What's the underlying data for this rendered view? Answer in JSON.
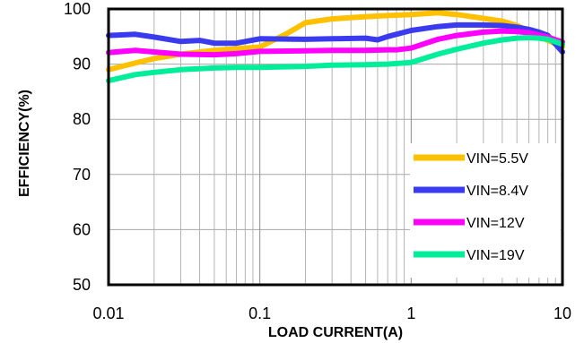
{
  "chart_data": {
    "type": "line",
    "xlabel": "LOAD CURRENT(A)",
    "ylabel": "EFFICIENCY(%)",
    "xscale": "log",
    "xlim": [
      0.01,
      10
    ],
    "ylim": [
      50,
      100
    ],
    "xticks": [
      0.01,
      0.1,
      1,
      10
    ],
    "xtick_labels": [
      "0.01",
      "0.1",
      "1",
      "10"
    ],
    "yticks": [
      50,
      60,
      70,
      80,
      90,
      100
    ],
    "ytick_labels": [
      "50",
      "60",
      "70",
      "80",
      "90",
      "100"
    ],
    "grid": true,
    "legend_position": "bottom-right",
    "series": [
      {
        "name": "VIN=5.5V",
        "color": "#ffc000",
        "x": [
          0.01,
          0.015,
          0.02,
          0.03,
          0.05,
          0.07,
          0.1,
          0.15,
          0.2,
          0.3,
          0.5,
          0.7,
          1,
          1.5,
          2,
          3,
          4,
          5,
          6,
          7,
          8,
          10
        ],
        "y": [
          89.0,
          90.2,
          91.0,
          91.8,
          92.5,
          92.8,
          93.1,
          95.5,
          97.5,
          98.2,
          98.6,
          98.8,
          99.0,
          99.3,
          99.0,
          98.3,
          97.8,
          97.0,
          96.0,
          95.0,
          94.3,
          93.2
        ]
      },
      {
        "name": "VIN=8.4V",
        "color": "#3a3aef",
        "x": [
          0.01,
          0.015,
          0.02,
          0.03,
          0.04,
          0.05,
          0.07,
          0.1,
          0.2,
          0.3,
          0.5,
          0.6,
          0.7,
          1,
          1.5,
          2,
          3,
          4,
          5,
          6,
          7,
          8,
          10
        ],
        "y": [
          95.2,
          95.4,
          94.9,
          94.1,
          94.3,
          93.8,
          93.8,
          94.6,
          94.5,
          94.6,
          94.7,
          94.4,
          95.0,
          96.1,
          96.8,
          97.1,
          97.1,
          97.0,
          96.7,
          96.3,
          95.8,
          95.2,
          92.2
        ]
      },
      {
        "name": "VIN=12V",
        "color": "#ff00ff",
        "x": [
          0.01,
          0.015,
          0.02,
          0.03,
          0.05,
          0.07,
          0.1,
          0.2,
          0.3,
          0.5,
          0.7,
          0.8,
          1,
          1.5,
          2,
          3,
          4,
          5,
          6,
          7,
          8,
          10
        ],
        "y": [
          92.1,
          92.5,
          92.2,
          91.8,
          91.7,
          91.9,
          92.3,
          92.4,
          92.5,
          92.5,
          92.6,
          92.6,
          92.9,
          94.5,
          95.2,
          95.8,
          96.0,
          95.9,
          95.7,
          95.3,
          94.9,
          94.0
        ]
      },
      {
        "name": "VIN=19V",
        "color": "#00ee99",
        "x": [
          0.01,
          0.015,
          0.02,
          0.03,
          0.05,
          0.07,
          0.1,
          0.2,
          0.3,
          0.5,
          0.7,
          1,
          1.5,
          2,
          3,
          4,
          5,
          6,
          7,
          8,
          10
        ],
        "y": [
          87.0,
          88.1,
          88.5,
          89.0,
          89.3,
          89.4,
          89.4,
          89.6,
          89.8,
          89.9,
          90.0,
          90.3,
          91.8,
          92.7,
          93.8,
          94.4,
          94.7,
          94.8,
          94.7,
          94.5,
          93.6
        ]
      }
    ]
  }
}
